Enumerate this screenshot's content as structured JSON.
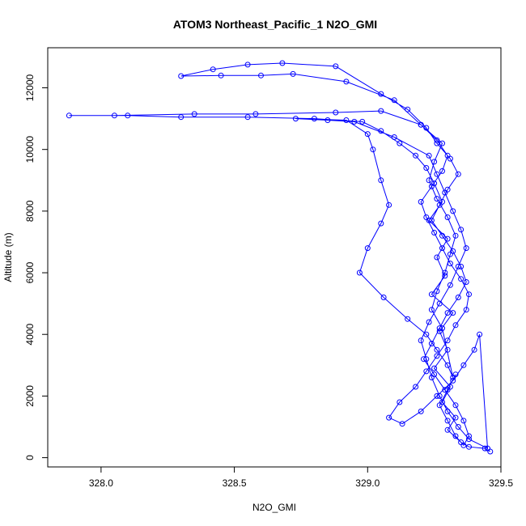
{
  "chart_data": {
    "type": "line",
    "title": "ATOM3 Northeast_Pacific_1 N2O_GMI",
    "xlabel": "N2O_GMI",
    "ylabel": "Altitude (m)",
    "xlim": [
      327.8,
      329.5
    ],
    "ylim": [
      -300,
      13300
    ],
    "xticks": [
      {
        "value": 328.0,
        "label": "328.0"
      },
      {
        "value": 328.5,
        "label": "328.5"
      },
      {
        "value": 329.0,
        "label": "329.0"
      },
      {
        "value": 329.5,
        "label": "329.5"
      }
    ],
    "yticks": [
      {
        "value": 0,
        "label": "0"
      },
      {
        "value": 2000,
        "label": "2000"
      },
      {
        "value": 4000,
        "label": "4000"
      },
      {
        "value": 6000,
        "label": "6000"
      },
      {
        "value": 8000,
        "label": "8000"
      },
      {
        "value": 10000,
        "label": "10000"
      },
      {
        "value": 12000,
        "label": "12000"
      }
    ],
    "grid": false,
    "series": [
      {
        "color": "#0000ff",
        "x": [
          329.46,
          329.44,
          329.38,
          329.35,
          329.3,
          329.33,
          329.28,
          329.31,
          329.25,
          329.3,
          329.27,
          329.32,
          329.24,
          329.29,
          329.26,
          329.3,
          329.23,
          329.28,
          329.25,
          329.22,
          329.18,
          329.12,
          329.05,
          328.98,
          328.8,
          328.55,
          328.3,
          328.1,
          327.88,
          328.05,
          328.35,
          328.58,
          328.88,
          329.05,
          329.2,
          329.26,
          329.3,
          329.28,
          329.24,
          329.2,
          329.22,
          329.25,
          329.28,
          329.31,
          329.35,
          329.38,
          329.37,
          329.33,
          329.3,
          329.26,
          329.22,
          329.18,
          329.12,
          329.08,
          329.13,
          329.2,
          329.26,
          329.32,
          329.36,
          329.4,
          329.42,
          329.45,
          329.38,
          329.34,
          329.3,
          329.27,
          329.24,
          329.22,
          329.2,
          329.23,
          329.27,
          329.31,
          329.34,
          329.37,
          329.35,
          329.32,
          329.29,
          329.26,
          329.23,
          329.1,
          328.95,
          328.85,
          328.73,
          328.92,
          329.0,
          329.02,
          329.05,
          329.08,
          329.05,
          329.0,
          328.97,
          329.06,
          329.15,
          329.22,
          329.26,
          329.3,
          329.32,
          329.28,
          329.24,
          329.26,
          329.29,
          329.31,
          329.33,
          329.3,
          329.26,
          329.23,
          329.25,
          329.28,
          329.2,
          329.1,
          328.92,
          328.72,
          328.6,
          328.45,
          328.3,
          328.42,
          328.55,
          328.68,
          328.88,
          329.05,
          329.15,
          329.22,
          329.26,
          329.31,
          329.34,
          329.3,
          329.27,
          329.24,
          329.28,
          329.32,
          329.35,
          329.37,
          329.34,
          329.3,
          329.27,
          329.24,
          329.21,
          329.25,
          329.29,
          329.33,
          329.36,
          329.38,
          329.36,
          329.33,
          329.3,
          329.27,
          329.3,
          329.33
        ],
        "y": [
          200,
          300,
          350,
          500,
          900,
          1300,
          1800,
          2300,
          2900,
          3500,
          4100,
          4700,
          5300,
          5900,
          6500,
          7100,
          7700,
          8300,
          8900,
          9400,
          9800,
          10200,
          10600,
          10900,
          11000,
          11050,
          11050,
          11100,
          11100,
          11100,
          11150,
          11150,
          11200,
          11250,
          10800,
          10300,
          9800,
          9300,
          8800,
          8300,
          7800,
          7300,
          6800,
          6300,
          5800,
          5300,
          4800,
          4300,
          3800,
          3300,
          2800,
          2300,
          1800,
          1300,
          1100,
          1500,
          2000,
          2500,
          3000,
          3500,
          4000,
          300,
          600,
          1000,
          1500,
          2000,
          2600,
          3200,
          3800,
          4400,
          5000,
          5600,
          6200,
          6800,
          7400,
          8000,
          8600,
          9200,
          9800,
          10400,
          10900,
          10950,
          11000,
          10950,
          10500,
          10000,
          9000,
          8200,
          7600,
          6800,
          6000,
          5200,
          4500,
          4000,
          3500,
          3000,
          2600,
          4200,
          4800,
          5400,
          6000,
          6600,
          7200,
          7800,
          8400,
          9000,
          9600,
          10200,
          10800,
          11600,
          12200,
          12450,
          12400,
          12400,
          12380,
          12600,
          12750,
          12800,
          12700,
          11800,
          11300,
          10700,
          10200,
          9700,
          9200,
          8700,
          8200,
          7700,
          7200,
          6700,
          6200,
          5700,
          5200,
          4700,
          4200,
          3700,
          3200,
          2700,
          2200,
          1700,
          1200,
          700,
          400,
          700,
          1200,
          1700,
          2200,
          2700
        ]
      }
    ]
  }
}
